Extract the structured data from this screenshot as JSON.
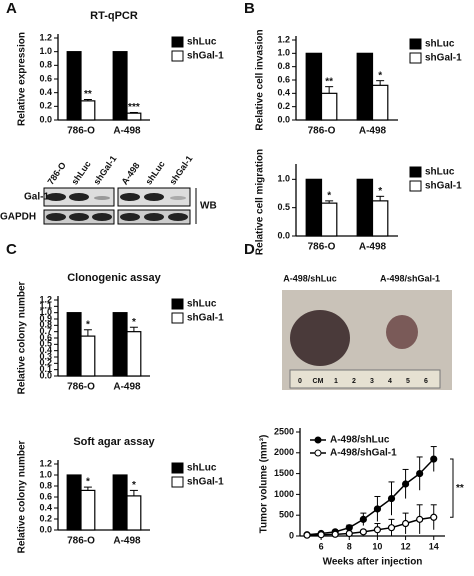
{
  "panels": [
    "A",
    "B",
    "C",
    "D"
  ],
  "blot": {
    "lane_labels": [
      "786-O",
      "shLuc",
      "shGal-1",
      "A-498",
      "shLuc",
      "shGal-1"
    ],
    "row_labels": [
      "Gal-1",
      "GAPDH"
    ],
    "method": "WB"
  },
  "photo": {
    "labels": [
      "A-498/shLuc",
      "A-498/shGal-1"
    ],
    "ruler_labels": [
      "0",
      "CM",
      "1",
      "2",
      "3",
      "4",
      "5",
      "6"
    ]
  },
  "chart_data": [
    {
      "type": "bar",
      "title": "RT-qPCR",
      "ylabel": "Relative expression",
      "categories": [
        "786-O",
        "A-498"
      ],
      "series": [
        {
          "name": "shLuc",
          "color": "#000000",
          "values": [
            1,
            1
          ]
        },
        {
          "name": "shGal-1",
          "color": "#ffffff",
          "values": [
            0.28,
            0.1
          ],
          "errors": [
            0.02,
            0.01
          ],
          "significance": [
            "**",
            "***"
          ]
        }
      ],
      "ylim": [
        0,
        1.2
      ],
      "yticks": [
        {
          "value": 0,
          "label": "0.0"
        },
        0.2,
        0.4,
        0.6,
        0.8,
        {
          "value": 1,
          "label": "1.0"
        },
        1.2
      ]
    },
    {
      "type": "bar",
      "ylabel": "Relative cell invasion",
      "categories": [
        "786-O",
        "A-498"
      ],
      "series": [
        {
          "name": "shLuc",
          "color": "#000000",
          "values": [
            1,
            1
          ]
        },
        {
          "name": "shGal-1",
          "color": "#ffffff",
          "values": [
            0.4,
            0.52
          ],
          "errors": [
            0.1,
            0.07
          ],
          "significance": [
            "**",
            "*"
          ]
        }
      ],
      "ylim": [
        0,
        1.2
      ],
      "yticks": [
        {
          "value": 0,
          "label": "0.0"
        },
        0.2,
        0.4,
        0.6,
        0.8,
        {
          "value": 1,
          "label": "1.0"
        },
        1.2
      ]
    },
    {
      "type": "bar",
      "ylabel": "Relative cell migration",
      "categories": [
        "786-O",
        "A-498"
      ],
      "series": [
        {
          "name": "shLuc",
          "color": "#000000",
          "values": [
            1,
            1
          ]
        },
        {
          "name": "shGal-1",
          "color": "#ffffff",
          "values": [
            0.58,
            0.62
          ],
          "errors": [
            0.04,
            0.08
          ],
          "significance": [
            "*",
            "*"
          ]
        }
      ],
      "ylim": [
        0,
        1.2
      ],
      "yticks": [
        {
          "value": 0,
          "label": "0.0"
        },
        0.5,
        {
          "value": 1,
          "label": "1.0"
        }
      ]
    },
    {
      "type": "bar",
      "title": "Clonogenic assay",
      "ylabel": "Relative colony number",
      "categories": [
        "786-O",
        "A-498"
      ],
      "series": [
        {
          "name": "shLuc",
          "color": "#000000",
          "values": [
            1,
            1
          ]
        },
        {
          "name": "shGal-1",
          "color": "#ffffff",
          "values": [
            0.63,
            0.7
          ],
          "errors": [
            0.1,
            0.07
          ],
          "significance": [
            "*",
            "*"
          ]
        }
      ],
      "ylim": [
        0,
        1.2
      ],
      "yticks": [
        {
          "value": 0,
          "label": "0.0"
        },
        0.1,
        0.2,
        0.3,
        0.4,
        0.5,
        0.6,
        0.7,
        0.8,
        0.9,
        {
          "value": 1,
          "label": "1.0"
        },
        1.1,
        1.2
      ]
    },
    {
      "type": "bar",
      "title": "Soft agar assay",
      "ylabel": "Relative colony number",
      "categories": [
        "786-O",
        "A-498"
      ],
      "series": [
        {
          "name": "shLuc",
          "color": "#000000",
          "values": [
            1,
            1
          ]
        },
        {
          "name": "shGal-1",
          "color": "#ffffff",
          "values": [
            0.72,
            0.62
          ],
          "errors": [
            0.06,
            0.1
          ],
          "significance": [
            "*",
            "*"
          ]
        }
      ],
      "ylim": [
        0,
        1.2
      ],
      "yticks": [
        {
          "value": 0,
          "label": "0.0"
        },
        0.2,
        0.4,
        0.6,
        0.8,
        {
          "value": 1,
          "label": "1.0"
        },
        1.2
      ]
    },
    {
      "type": "line",
      "ylabel": "Tumor volume (mm³)",
      "xlabel": "Weeks after injection",
      "x": [
        5,
        6,
        7,
        8,
        9,
        10,
        11,
        12,
        13,
        14
      ],
      "series": [
        {
          "name": "A-498/shLuc",
          "color": "#000000",
          "values": [
            30,
            60,
            100,
            200,
            400,
            650,
            900,
            1250,
            1500,
            1850
          ],
          "errors": [
            10,
            20,
            30,
            60,
            150,
            300,
            400,
            350,
            400,
            300
          ]
        },
        {
          "name": "A-498/shGal-1",
          "color": "#ffffff",
          "values": [
            20,
            30,
            40,
            60,
            100,
            150,
            200,
            300,
            400,
            450
          ],
          "errors": [
            10,
            10,
            20,
            30,
            40,
            150,
            200,
            250,
            350,
            300
          ]
        }
      ],
      "annotation": "**",
      "xlim": [
        4.5,
        14.8
      ],
      "xticks": [
        6,
        8,
        10,
        12,
        14
      ],
      "ylim": [
        0,
        2500
      ],
      "yticks": [
        0,
        500,
        1000,
        1500,
        2000,
        2500
      ]
    }
  ]
}
